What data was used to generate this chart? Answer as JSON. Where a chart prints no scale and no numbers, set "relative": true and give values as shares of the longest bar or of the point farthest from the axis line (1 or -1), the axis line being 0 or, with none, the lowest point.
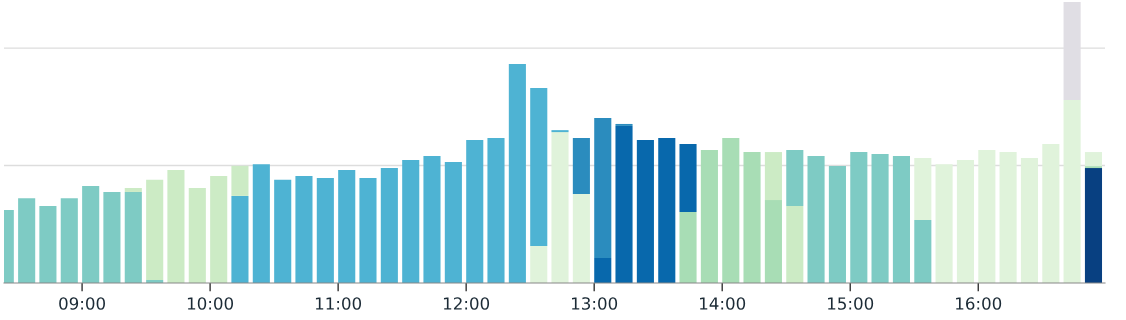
{
  "chart_data": {
    "type": "bar",
    "stacked": true,
    "relative": true,
    "x": [
      8.4,
      8.567,
      8.733,
      8.9,
      9.067,
      9.233,
      9.4,
      9.567,
      9.733,
      9.9,
      10.067,
      10.233,
      10.4,
      10.567,
      10.733,
      10.9,
      11.067,
      11.233,
      11.4,
      11.567,
      11.733,
      11.9,
      12.067,
      12.233,
      12.4,
      12.567,
      12.733,
      12.9,
      13.067,
      13.233,
      13.4,
      13.567,
      13.733,
      13.9,
      14.067,
      14.233,
      14.4,
      14.567,
      14.733,
      14.9,
      15.067,
      15.233,
      15.4,
      15.567,
      15.733,
      15.9,
      16.067,
      16.233,
      16.4,
      16.567,
      16.733,
      16.9
    ],
    "xlim": [
      8.39,
      16.99
    ],
    "xticks": [
      {
        "value": 9,
        "label": "09:00"
      },
      {
        "value": 10,
        "label": "10:00"
      },
      {
        "value": 11,
        "label": "11:00"
      },
      {
        "value": 12,
        "label": "12:00"
      },
      {
        "value": 13,
        "label": "13:00"
      },
      {
        "value": 14,
        "label": "14:00"
      },
      {
        "value": 15,
        "label": "15:00"
      },
      {
        "value": 16,
        "label": "16:00"
      }
    ],
    "ref_lines": [
      {
        "axis": "y",
        "value": 0.418,
        "color": "#dddddd"
      },
      {
        "axis": "y",
        "value": 0.836,
        "color": "#dddddd"
      }
    ],
    "tick_labels": "x",
    "series": [
      {
        "values": [
          0.26,
          0.302,
          0.274,
          0.302,
          0.345,
          0.324,
          0.324,
          0.011,
          0.402,
          0.338,
          0.381,
          0.31,
          0.423,
          0.367,
          0.381,
          0.374,
          0.402,
          0.374,
          0.409,
          0.438,
          0.452,
          0.431,
          0.509,
          0.516,
          0.779,
          0.132,
          0.537,
          0.317,
          0.089,
          0.559,
          0.509,
          0.516,
          0.253,
          0.473,
          0.516,
          0.466,
          0.295,
          0.274,
          0.452,
          0.416,
          0.466,
          0.459,
          0.452,
          0.224,
          0.423,
          0.438,
          0.473,
          0.466,
          0.445,
          0.495,
          0.651,
          0.409
        ],
        "colors": [
          "#7ecbc4",
          "#7ecbc4",
          "#7ecbc4",
          "#7ecbc4",
          "#7ecbc4",
          "#7ecbc4",
          "#7ecbc4",
          "#7ecbc4",
          "#ccebc5",
          "#ccebc5",
          "#ccebc5",
          "#4eb3d3",
          "#4eb3d3",
          "#4eb3d3",
          "#4eb3d3",
          "#4eb3d3",
          "#4eb3d3",
          "#4eb3d3",
          "#4eb3d3",
          "#4eb3d3",
          "#4eb3d3",
          "#4eb3d3",
          "#4eb3d3",
          "#4eb3d3",
          "#4eb3d3",
          "#e0f3db",
          "#e0f3db",
          "#e0f3db",
          "#0868ac",
          "#0868ac",
          "#0868ac",
          "#0868ac",
          "#a8ddb5",
          "#a8ddb5",
          "#a8ddb5",
          "#a8ddb5",
          "#a8ddb5",
          "#ccebc5",
          "#7ecbc4",
          "#7ecbc4",
          "#7ecbc4",
          "#7ecbc4",
          "#7ecbc4",
          "#7ecbc4",
          "#e0f3db",
          "#e0f3db",
          "#e0f3db",
          "#e0f3db",
          "#e0f3db",
          "#e0f3db",
          "#e0f3db",
          "#084081"
        ]
      },
      {
        "values": [
          null,
          null,
          null,
          null,
          null,
          null,
          0.014,
          0.356,
          null,
          null,
          null,
          0.107,
          null,
          null,
          null,
          null,
          null,
          null,
          null,
          null,
          null,
          null,
          null,
          null,
          null,
          0.562,
          0.007,
          0.199,
          0.498,
          0.007,
          null,
          null,
          0.242,
          null,
          null,
          null,
          0.171,
          0.199,
          null,
          null,
          null,
          null,
          null,
          0.221,
          null,
          null,
          null,
          null,
          null,
          null,
          0.349,
          0.007
        ],
        "colors": [
          null,
          null,
          null,
          null,
          null,
          null,
          "#ccebc5",
          "#ccebc5",
          null,
          null,
          null,
          "#ccebc5",
          null,
          null,
          null,
          null,
          null,
          null,
          null,
          null,
          null,
          null,
          null,
          null,
          null,
          "#4eb3d3",
          "#4eb3d3",
          "#2b8cbe",
          "#2b8cbe",
          "#2b8cbe",
          null,
          null,
          "#0868ac",
          null,
          null,
          null,
          "#ccebc5",
          "#7ecbc4",
          null,
          null,
          null,
          null,
          null,
          "#e0f3db",
          null,
          null,
          null,
          null,
          null,
          null,
          "#e0dee4",
          "#a8ddb5"
        ]
      },
      {
        "values": [
          null,
          null,
          null,
          null,
          null,
          null,
          null,
          null,
          null,
          null,
          null,
          null,
          null,
          null,
          null,
          null,
          null,
          null,
          null,
          null,
          null,
          null,
          null,
          null,
          null,
          null,
          null,
          null,
          null,
          null,
          null,
          null,
          null,
          null,
          null,
          null,
          null,
          null,
          null,
          null,
          null,
          null,
          null,
          null,
          null,
          null,
          null,
          null,
          null,
          null,
          null,
          0.05
        ],
        "colors": [
          null,
          null,
          null,
          null,
          null,
          null,
          null,
          null,
          null,
          null,
          null,
          null,
          null,
          null,
          null,
          null,
          null,
          null,
          null,
          null,
          null,
          null,
          null,
          null,
          null,
          null,
          null,
          null,
          null,
          null,
          null,
          null,
          null,
          null,
          null,
          null,
          null,
          null,
          null,
          null,
          null,
          null,
          null,
          null,
          null,
          null,
          null,
          null,
          null,
          null,
          null,
          "#e0f3db"
        ]
      }
    ]
  }
}
